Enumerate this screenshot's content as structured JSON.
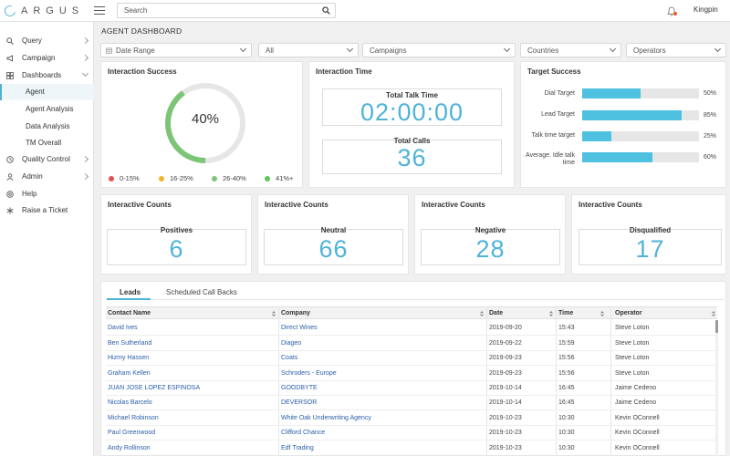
{
  "app": {
    "logo_text": "ARGUS"
  },
  "search": {
    "placeholder": "Search"
  },
  "user": {
    "name": "Kingpin"
  },
  "sidebar": {
    "items": [
      {
        "label": "Query",
        "icon": "search-icon"
      },
      {
        "label": "Campaign",
        "icon": "megaphone-icon"
      },
      {
        "label": "Dashboards",
        "icon": "grid-icon"
      },
      {
        "label": "Agent"
      },
      {
        "label": "Agent Analysis"
      },
      {
        "label": "Data Analysis"
      },
      {
        "label": "TM Overall"
      },
      {
        "label": "Quality Control",
        "icon": "clock-icon"
      },
      {
        "label": "Admin",
        "icon": "user-icon"
      },
      {
        "label": "Help",
        "icon": "help-icon"
      },
      {
        "label": "Raise a Ticket",
        "icon": "asterisk-icon"
      }
    ]
  },
  "page": {
    "title": "AGENT DASHBOARD"
  },
  "filters": {
    "date_range": "Date Range",
    "all": "All",
    "campaigns": "Campaigns",
    "countries": "Countries",
    "operators": "Operators"
  },
  "interaction_success": {
    "title": "Interaction Success",
    "value_label": "40%",
    "value": 40,
    "legend": [
      "0-15%",
      "16-25%",
      "26-40%",
      "41%+"
    ],
    "colors": {
      "low": "#e85050",
      "mid": "#f0b429",
      "good": "#7cc576",
      "best": "#5cc85c",
      "track": "#e6e6e6"
    }
  },
  "interaction_time": {
    "title": "Interaction Time",
    "talk_time_label": "Total Talk Time",
    "talk_time": "02:00:00",
    "calls_label": "Total Calls",
    "calls": "36"
  },
  "target_success": {
    "title": "Target Success",
    "targets": [
      {
        "label": "Dial Target",
        "pct_label": "50%",
        "pct": 50
      },
      {
        "label": "Lead Target",
        "pct_label": "85%",
        "pct": 85
      },
      {
        "label": "Talk time target",
        "pct_label": "25%",
        "pct": 25
      },
      {
        "label": "Average. Idle talk time",
        "pct_label": "60%",
        "pct": 60
      }
    ]
  },
  "counts": [
    {
      "title": "Interactive Counts",
      "label": "Positives",
      "value": "6"
    },
    {
      "title": "Interactive Counts",
      "label": "Neutral",
      "value": "66"
    },
    {
      "title": "Interactive Counts",
      "label": "Negative",
      "value": "28"
    },
    {
      "title": "Interactive Counts",
      "label": "Disqualified",
      "value": "17"
    }
  ],
  "tabs": [
    "Leads",
    "Scheduled Call Backs"
  ],
  "table": {
    "headers": [
      "Contact Name",
      "Company",
      "Date",
      "Time",
      "Operator"
    ],
    "rows": [
      [
        "David Ives",
        "Direct Wines",
        "2019-09-20",
        "15:43",
        "Steve Loton"
      ],
      [
        "Ben Sutherland",
        "Diageo",
        "2019-09-22",
        "15:59",
        "Steve Loton"
      ],
      [
        "Hizmy Hassen",
        "Coats",
        "2019-09-23",
        "15:56",
        "Steve Loton"
      ],
      [
        "Graham Kellen",
        "Schroders - Europe",
        "2019-09-23",
        "15:56",
        "Steve Loton"
      ],
      [
        "JUAN JOSE LOPEZ ESPINOSA",
        "GOODBYTE",
        "2019-10-14",
        "16:45",
        "Jaime Cedeno"
      ],
      [
        "Nicolas Barcelo",
        "DEVERSOR",
        "2019-10-14",
        "16:45",
        "Jaime Cedeno"
      ],
      [
        "Michael Robinson",
        "White Oak Underwriting Agency",
        "2019-10-23",
        "10:30",
        "Kevin OConnell"
      ],
      [
        "Paul Greenwood",
        "Clifford Chance",
        "2019-10-23",
        "10:30",
        "Kevin OConnell"
      ],
      [
        "Andy Rollinson",
        "Edf Trading",
        "2019-10-23",
        "10:30",
        "Kevin OConnell"
      ]
    ]
  }
}
